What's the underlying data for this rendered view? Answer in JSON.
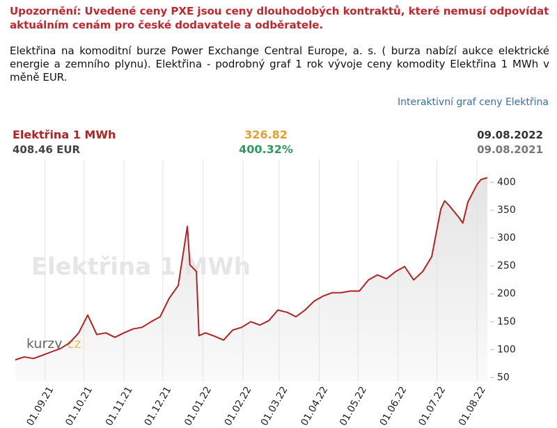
{
  "warning": "Upozornění: Uvedené ceny PXE jsou ceny dlouhodobých kontraktů, které nemusí odpovídat aktuálním cenám pro české dodavatele a odběratele.",
  "description": "Elektřina na komoditní burze Power Exchange Central Europe, a. s. ( burza nabízí aukce elektrické energie a zemního plynu). Elektřina - podrobný graf 1 rok vývoje ceny komodity Elektřina 1 MWh v měně EUR.",
  "link": "Interaktivní graf ceny Elektřina",
  "chart_data": {
    "type": "line",
    "title": "Elektřina 1 MWh",
    "price": "408.46 EUR",
    "change": "326.82",
    "change_percent": "400.32%",
    "date_end": "09.08.2022",
    "date_start": "09.08.2021",
    "logo": [
      "kurzy",
      "cz"
    ],
    "color": "#b22222",
    "x": [
      "2021-08-09",
      "2021-08-16",
      "2021-08-23",
      "2021-08-30",
      "2021-09-06",
      "2021-09-13",
      "2021-09-20",
      "2021-09-27",
      "2021-10-04",
      "2021-10-11",
      "2021-10-18",
      "2021-10-25",
      "2021-11-01",
      "2021-11-08",
      "2021-11-15",
      "2021-11-22",
      "2021-11-29",
      "2021-12-06",
      "2021-12-13",
      "2021-12-20",
      "2021-12-22",
      "2021-12-27",
      "2021-12-29",
      "2022-01-03",
      "2022-01-10",
      "2022-01-17",
      "2022-01-24",
      "2022-01-31",
      "2022-02-07",
      "2022-02-14",
      "2022-02-21",
      "2022-02-28",
      "2022-03-07",
      "2022-03-14",
      "2022-03-21",
      "2022-03-28",
      "2022-04-04",
      "2022-04-11",
      "2022-04-18",
      "2022-04-25",
      "2022-05-02",
      "2022-05-09",
      "2022-05-16",
      "2022-05-23",
      "2022-05-30",
      "2022-06-06",
      "2022-06-13",
      "2022-06-20",
      "2022-06-27",
      "2022-07-04",
      "2022-07-07",
      "2022-07-11",
      "2022-07-18",
      "2022-07-21",
      "2022-07-25",
      "2022-08-01",
      "2022-08-04",
      "2022-08-09"
    ],
    "values": [
      81.64,
      87,
      84,
      90,
      96,
      102,
      112,
      130,
      162,
      127,
      130,
      122,
      130,
      137,
      140,
      150,
      159,
      192,
      215,
      321,
      252,
      240,
      125,
      130,
      124,
      117,
      135,
      140,
      150,
      144,
      152,
      171,
      167,
      159,
      171,
      187,
      196,
      202,
      202,
      205,
      205,
      225,
      234,
      227,
      240,
      249,
      225,
      240,
      267,
      352,
      367,
      357,
      337,
      327,
      365,
      396,
      405,
      408.46
    ],
    "xlim": [
      "2021-08-09",
      "2022-08-09"
    ],
    "xticks": [
      {
        "value": "2021-09-01",
        "label": "01.09.21"
      },
      {
        "value": "2021-10-01",
        "label": "01.10.21"
      },
      {
        "value": "2021-11-01",
        "label": "01.11.21"
      },
      {
        "value": "2021-12-01",
        "label": "01.12.21"
      },
      {
        "value": "2022-01-01",
        "label": "01.01.22"
      },
      {
        "value": "2022-02-01",
        "label": "01.02.22"
      },
      {
        "value": "2022-03-01",
        "label": "01.03.22"
      },
      {
        "value": "2022-04-01",
        "label": "01.04.22"
      },
      {
        "value": "2022-05-01",
        "label": "01.05.22"
      },
      {
        "value": "2022-06-01",
        "label": "01.06.22"
      },
      {
        "value": "2022-07-01",
        "label": "01.07.22"
      },
      {
        "value": "2022-08-01",
        "label": "01.08.22"
      }
    ],
    "ylim": [
      43,
      440
    ],
    "yticks": [
      50,
      100,
      150,
      200,
      250,
      300,
      350,
      400
    ],
    "grid": true
  }
}
